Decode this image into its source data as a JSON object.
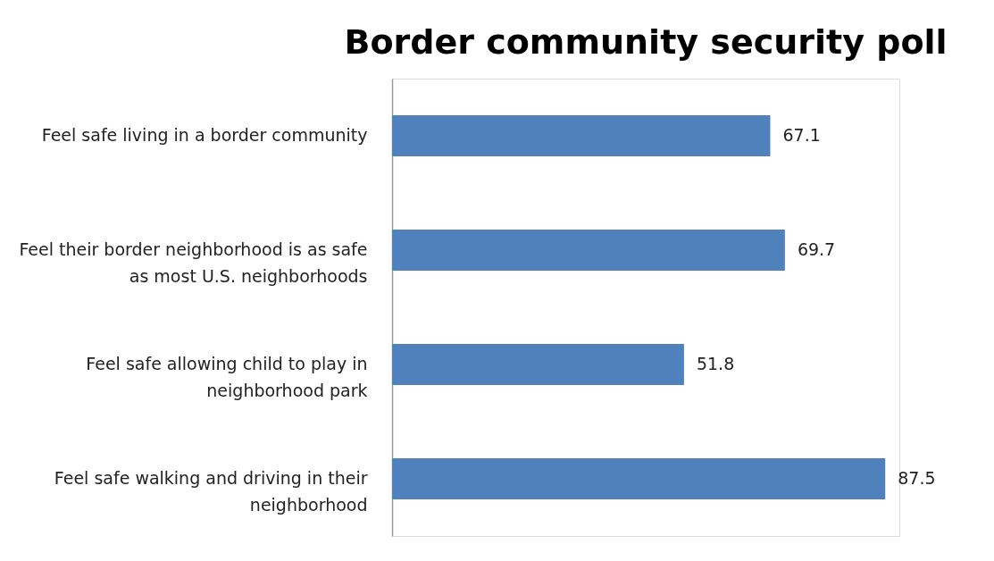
{
  "chart_data": {
    "type": "bar",
    "orientation": "horizontal",
    "title": "Border community security poll",
    "categories": [
      "Feel safe living in a border community",
      "Feel their border neighborhood is as safe\nas most U.S. neighborhoods",
      "Feel safe allowing child to play in\nneighborhood park",
      "Feel safe walking and driving in their\nneighborhood"
    ],
    "values": [
      67.1,
      69.7,
      51.8,
      87.5
    ],
    "color": "#4f81bd",
    "data_labels": true,
    "tick_labels": "y"
  }
}
